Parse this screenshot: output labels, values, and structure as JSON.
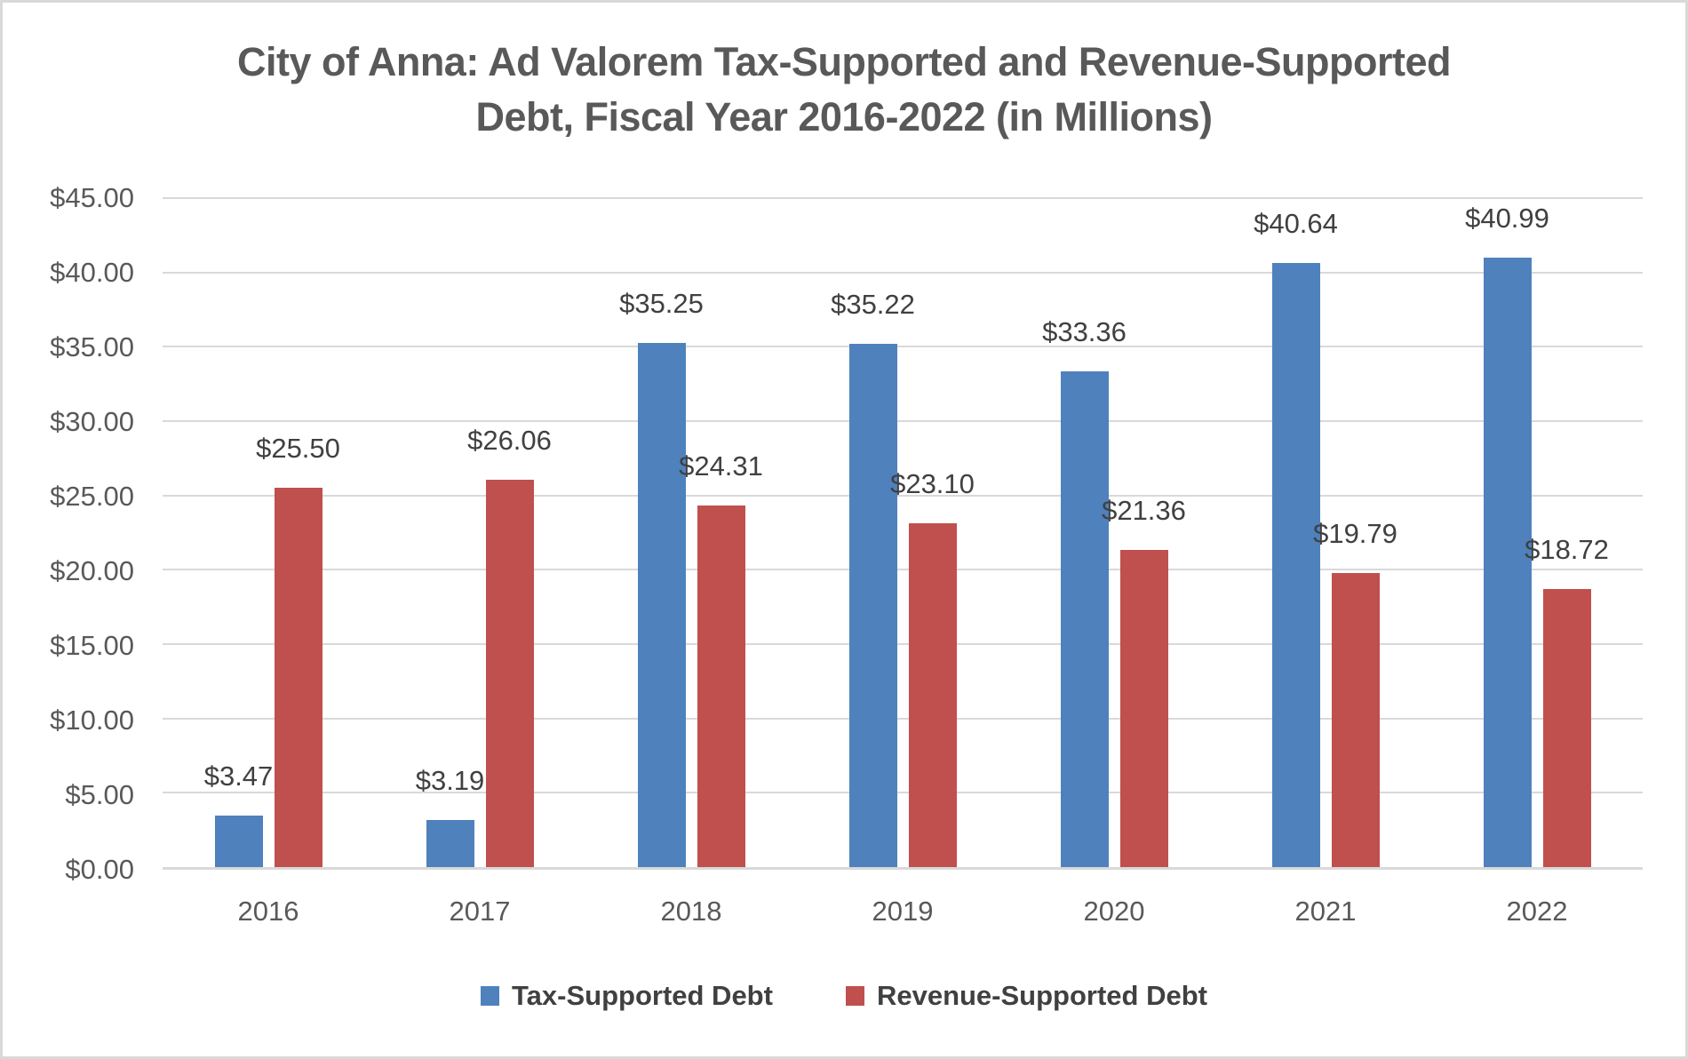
{
  "chart_data": {
    "type": "bar",
    "title": "City of Anna: Ad Valorem Tax-Supported and Revenue-Supported Debt, Fiscal Year 2016-2022 (in Millions)",
    "title_lines": [
      "City of Anna: Ad Valorem Tax-Supported and Revenue-Supported",
      "Debt, Fiscal Year 2016-2022 (in Millions)"
    ],
    "categories": [
      "2016",
      "2017",
      "2018",
      "2019",
      "2020",
      "2021",
      "2022"
    ],
    "series": [
      {
        "name": "Tax-Supported Debt",
        "color": "#4F81BD",
        "values": [
          3.47,
          3.19,
          35.25,
          35.22,
          33.36,
          40.64,
          40.99
        ],
        "data_labels": [
          "$3.47",
          "$3.19",
          "$35.25",
          "$35.22",
          "$33.36",
          "$40.64",
          "$40.99"
        ]
      },
      {
        "name": "Revenue-Supported Debt",
        "color": "#C0504D",
        "values": [
          25.5,
          26.06,
          24.31,
          23.1,
          21.36,
          19.79,
          18.72
        ],
        "data_labels": [
          "$25.50",
          "$26.06",
          "$24.31",
          "$23.10",
          "$21.36",
          "$19.79",
          "$18.72"
        ]
      }
    ],
    "y_axis": {
      "min": 0,
      "max": 45,
      "step": 5,
      "tick_labels": [
        "$0.00",
        "$5.00",
        "$10.00",
        "$15.00",
        "$20.00",
        "$25.00",
        "$30.00",
        "$35.00",
        "$40.00",
        "$45.00"
      ]
    },
    "xlabel": "",
    "ylabel": "",
    "grid": true,
    "legend_position": "bottom",
    "styles": {
      "grid_color": "#D9D9D9",
      "axis_text_color": "#595959",
      "data_label_color": "#404040",
      "title_color": "#595959",
      "legend_text_color": "#404040",
      "background": "#FFFFFF",
      "border_color": "#D9D9D9"
    }
  }
}
